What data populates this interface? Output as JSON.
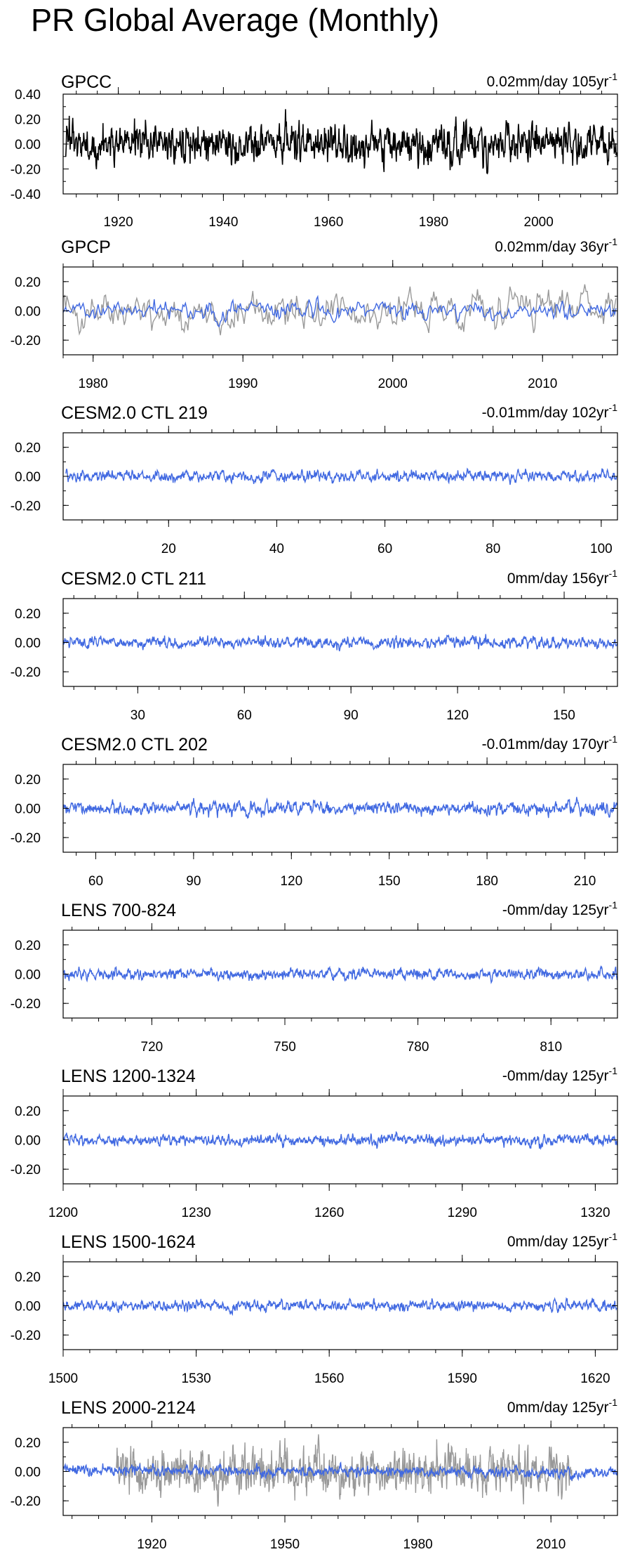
{
  "figure": {
    "title": "PR Global Average (Monthly)"
  },
  "colors": {
    "obs": "#000000",
    "model": "#4169e1",
    "overlay": "#999999",
    "frame": "#000000"
  },
  "chart_data": [
    {
      "type": "line",
      "title": "GPCC",
      "stat_prefix": "0.02mm/day 105",
      "stat_unit": "yr",
      "stat_exp": "-1",
      "xlim": [
        1909.5,
        2015
      ],
      "ylim": [
        -0.4,
        0.4
      ],
      "yticks": [
        -0.4,
        -0.2,
        0.0,
        0.2,
        0.4
      ],
      "ytick_labels": [
        "-0.40",
        "-0.20",
        "0.00",
        "0.20",
        "0.40"
      ],
      "xticks": [
        1920,
        1940,
        1960,
        1980,
        2000
      ],
      "xtick_labels": [
        "1920",
        "1940",
        "1960",
        "1980",
        "2000"
      ],
      "series": [
        {
          "role": "obs",
          "x_start": 1910,
          "x_end": 2014.9,
          "n": 1260,
          "amplitude": 0.13,
          "seed": 11,
          "trend": 0.02
        }
      ]
    },
    {
      "type": "line",
      "title": "GPCP",
      "stat_prefix": "0.02mm/day 36",
      "stat_unit": "yr",
      "stat_exp": "-1",
      "xlim": [
        1978,
        2015
      ],
      "ylim": [
        -0.3,
        0.3
      ],
      "yticks": [
        -0.2,
        0.0,
        0.2
      ],
      "ytick_labels": [
        "-0.20",
        "0.00",
        "0.20"
      ],
      "xticks": [
        1980,
        1990,
        2000,
        2010
      ],
      "xtick_labels": [
        "1980",
        "1990",
        "2000",
        "2010"
      ],
      "series": [
        {
          "role": "overlay",
          "x_start": 1978,
          "x_end": 2014.9,
          "n": 444,
          "amplitude": 0.1,
          "seed": 22,
          "trend": 0.08
        },
        {
          "role": "model",
          "x_start": 1978,
          "x_end": 2014.9,
          "n": 444,
          "amplitude": 0.05,
          "seed": 23,
          "trend": 0.0
        }
      ]
    },
    {
      "type": "line",
      "title": "CESM2.0 CTL 219",
      "stat_prefix": "-0.01mm/day 102",
      "stat_unit": "yr",
      "stat_exp": "-1",
      "xlim": [
        0.5,
        103
      ],
      "ylim": [
        -0.3,
        0.3
      ],
      "yticks": [
        -0.2,
        0.0,
        0.2
      ],
      "ytick_labels": [
        "-0.20",
        "0.00",
        "0.20"
      ],
      "xticks": [
        20,
        40,
        60,
        80,
        100
      ],
      "xtick_labels": [
        "20",
        "40",
        "60",
        "80",
        "100"
      ],
      "series": [
        {
          "role": "model",
          "x_start": 1,
          "x_end": 102.9,
          "n": 1224,
          "amplitude": 0.03,
          "seed": 33,
          "trend": 0.0
        }
      ]
    },
    {
      "type": "line",
      "title": "CESM2.0 CTL 211",
      "stat_prefix": "0mm/day 156",
      "stat_unit": "yr",
      "stat_exp": "-1",
      "xlim": [
        9,
        165
      ],
      "ylim": [
        -0.3,
        0.3
      ],
      "yticks": [
        -0.2,
        0.0,
        0.2
      ],
      "ytick_labels": [
        "-0.20",
        "0.00",
        "0.20"
      ],
      "xticks": [
        30,
        60,
        90,
        120,
        150
      ],
      "xtick_labels": [
        "30",
        "60",
        "90",
        "120",
        "150"
      ],
      "series": [
        {
          "role": "model",
          "x_start": 9,
          "x_end": 164.9,
          "n": 1300,
          "amplitude": 0.03,
          "seed": 44,
          "trend": 0.0
        }
      ]
    },
    {
      "type": "line",
      "title": "CESM2.0 CTL 202",
      "stat_prefix": "-0.01mm/day 170",
      "stat_unit": "yr",
      "stat_exp": "-1",
      "xlim": [
        50,
        220
      ],
      "ylim": [
        -0.3,
        0.3
      ],
      "yticks": [
        -0.2,
        0.0,
        0.2
      ],
      "ytick_labels": [
        "-0.20",
        "0.00",
        "0.20"
      ],
      "xticks": [
        60,
        90,
        120,
        150,
        180,
        210
      ],
      "xtick_labels": [
        "60",
        "90",
        "120",
        "150",
        "180",
        "210"
      ],
      "series": [
        {
          "role": "model",
          "x_start": 50,
          "x_end": 219.9,
          "n": 1300,
          "amplitude": 0.035,
          "seed": 55,
          "trend": 0.0
        }
      ]
    },
    {
      "type": "line",
      "title": "LENS 700-824",
      "stat_prefix": "-0mm/day 125",
      "stat_unit": "yr",
      "stat_exp": "-1",
      "xlim": [
        700,
        825
      ],
      "ylim": [
        -0.3,
        0.3
      ],
      "yticks": [
        -0.2,
        0.0,
        0.2
      ],
      "ytick_labels": [
        "-0.20",
        "0.00",
        "0.20"
      ],
      "xticks": [
        720,
        750,
        780,
        810
      ],
      "xtick_labels": [
        "720",
        "750",
        "780",
        "810"
      ],
      "series": [
        {
          "role": "model",
          "x_start": 700,
          "x_end": 824.9,
          "n": 1300,
          "amplitude": 0.03,
          "seed": 66,
          "trend": 0.0
        }
      ]
    },
    {
      "type": "line",
      "title": "LENS 1200-1324",
      "stat_prefix": "-0mm/day 125",
      "stat_unit": "yr",
      "stat_exp": "-1",
      "xlim": [
        1200,
        1325
      ],
      "ylim": [
        -0.3,
        0.3
      ],
      "yticks": [
        -0.2,
        0.0,
        0.2
      ],
      "ytick_labels": [
        "-0.20",
        "0.00",
        "0.20"
      ],
      "xticks": [
        1200,
        1230,
        1260,
        1290,
        1320
      ],
      "xtick_labels": [
        "1200",
        "1230",
        "1260",
        "1290",
        "1320"
      ],
      "series": [
        {
          "role": "model",
          "x_start": 1200,
          "x_end": 1324.9,
          "n": 1300,
          "amplitude": 0.03,
          "seed": 77,
          "trend": 0.0
        }
      ]
    },
    {
      "type": "line",
      "title": "LENS 1500-1624",
      "stat_prefix": "0mm/day 125",
      "stat_unit": "yr",
      "stat_exp": "-1",
      "xlim": [
        1500,
        1625
      ],
      "ylim": [
        -0.3,
        0.3
      ],
      "yticks": [
        -0.2,
        0.0,
        0.2
      ],
      "ytick_labels": [
        "-0.20",
        "0.00",
        "0.20"
      ],
      "xticks": [
        1500,
        1530,
        1560,
        1590,
        1620
      ],
      "xtick_labels": [
        "1500",
        "1530",
        "1560",
        "1590",
        "1620"
      ],
      "series": [
        {
          "role": "model",
          "x_start": 1500,
          "x_end": 1624.9,
          "n": 1300,
          "amplitude": 0.03,
          "seed": 88,
          "trend": 0.0
        }
      ]
    },
    {
      "type": "line",
      "title": "LENS 2000-2124",
      "stat_prefix": "0mm/day 125",
      "stat_unit": "yr",
      "stat_exp": "-1",
      "xlim": [
        1900,
        2025
      ],
      "ylim": [
        -0.3,
        0.3
      ],
      "yticks": [
        -0.2,
        0.0,
        0.2
      ],
      "ytick_labels": [
        "-0.20",
        "0.00",
        "0.20"
      ],
      "xticks": [
        1920,
        1950,
        1980,
        2010
      ],
      "xtick_labels": [
        "1920",
        "1950",
        "1980",
        "2010"
      ],
      "series": [
        {
          "role": "overlay",
          "x_start": 1912,
          "x_end": 2014.9,
          "n": 1236,
          "amplitude": 0.12,
          "seed": 99,
          "trend": 0.0
        },
        {
          "role": "model",
          "x_start": 1900,
          "x_end": 2024.9,
          "n": 1300,
          "amplitude": 0.03,
          "seed": 98,
          "trend": -0.02
        }
      ]
    }
  ]
}
